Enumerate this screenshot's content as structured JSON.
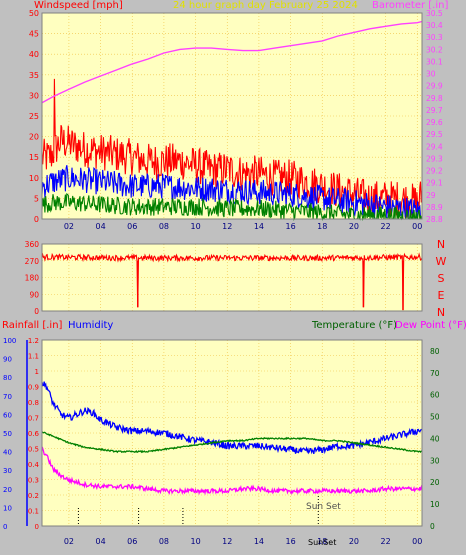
{
  "header": {
    "title": "24 hour graph day   February 25 2024",
    "left_label": "Windspeed [mph]",
    "right_label": "Barometer [.in]",
    "rain_label": "Rainfall [.in]",
    "humidity_label": "Humidity",
    "temp_label": "Temperature (°F)",
    "dew_label": "Dew Point (°F)",
    "sunset_label": "Sun Set",
    "sunset_axis_label": "SunSet"
  },
  "colors": {
    "background": "#c0c0c0",
    "plot": "#ffffc0",
    "grid": "#f0c040",
    "wind_gust": "#ff0000",
    "wind_avg": "#0000ff",
    "wind_low": "#008000",
    "barometer": "#ff40ff",
    "direction": "#ff0000",
    "humidity": "#0000ff",
    "temperature": "#008000",
    "dew_point": "#ff00ff",
    "rain": "#ff0000"
  },
  "chart_data": [
    {
      "type": "line",
      "name": "wind-barometer",
      "x_tick_labels": [
        "02",
        "04",
        "06",
        "08",
        "10",
        "12",
        "14",
        "16",
        "18",
        "20",
        "22",
        "00"
      ],
      "x_tick_hours": [
        2,
        4,
        6,
        8,
        10,
        12,
        14,
        16,
        18,
        20,
        22,
        24
      ],
      "xlim": [
        0.3,
        24.3
      ],
      "ylim_left": [
        0,
        50
      ],
      "yticks_left": [
        0,
        5,
        10,
        15,
        20,
        25,
        30,
        35,
        40,
        45,
        50
      ],
      "ylim_right": [
        28.8,
        30.5
      ],
      "yticks_right": [
        "28.8",
        "28.9",
        "29",
        "29.1",
        "29.2",
        "29.3",
        "29.4",
        "29.5",
        "29.6",
        "29.7",
        "29.8",
        "29.9",
        "30",
        "30.1",
        "30.2",
        "30.3",
        "30.4",
        "30.5"
      ],
      "series": [
        {
          "hours": [
            0.3,
            0.8,
            1.5,
            3,
            4.5,
            6,
            7,
            8,
            9,
            10,
            11,
            12,
            13,
            14,
            15,
            16,
            17,
            18,
            19,
            20,
            21,
            22,
            23,
            24,
            24.3
          ],
          "values": [
            15,
            15,
            19,
            17,
            16,
            15,
            14,
            14,
            14,
            13,
            12,
            12,
            11,
            11,
            10,
            10,
            9,
            8,
            7,
            6,
            5,
            5,
            5,
            4,
            6
          ]
        },
        {
          "hours": [
            0.3,
            1,
            2,
            4,
            6,
            8,
            10,
            12,
            14,
            16,
            18,
            20,
            22,
            24,
            24.3
          ],
          "values": [
            8,
            9,
            10,
            9,
            8,
            8,
            7.5,
            7,
            6.5,
            6,
            5,
            4,
            3,
            2,
            2
          ]
        },
        {
          "hours": [
            0.3,
            1,
            2,
            4,
            6,
            8,
            10,
            12,
            14,
            16,
            18,
            20,
            22,
            24,
            24.3
          ],
          "values": [
            3.5,
            4,
            4,
            3.5,
            3,
            3,
            3,
            2.5,
            2.5,
            2,
            1.5,
            1,
            1,
            0.5,
            0.5
          ]
        },
        {
          "hours": [
            0.3,
            1,
            2,
            3,
            4,
            5,
            6,
            7,
            8,
            9,
            10,
            11,
            12,
            13,
            14,
            15,
            16,
            17,
            18,
            19,
            20,
            21,
            22,
            23,
            24,
            24.3
          ],
          "values": [
            29.76,
            29.81,
            29.87,
            29.93,
            29.98,
            30.03,
            30.08,
            30.12,
            30.17,
            30.2,
            30.21,
            30.21,
            30.2,
            30.19,
            30.19,
            30.21,
            30.23,
            30.25,
            30.27,
            30.31,
            30.34,
            30.37,
            30.39,
            30.41,
            30.42,
            30.43
          ]
        }
      ],
      "extremes": {
        "gust_max": 34,
        "gust_peak_hour": 1.1
      }
    },
    {
      "type": "line",
      "name": "wind-direction",
      "yticks": [
        0,
        90,
        180,
        270,
        360
      ],
      "ylim": [
        0,
        360
      ],
      "compass_labels": [
        "N",
        "W",
        "S",
        "E",
        "N"
      ],
      "series": [
        {
          "hours": [
            0.3,
            6,
            12,
            18,
            24.3
          ],
          "values": [
            290,
            285,
            285,
            285,
            290
          ]
        }
      ],
      "dips": [
        {
          "hour": 6.35,
          "value": 20
        },
        {
          "hour": 20.6,
          "value": 20
        },
        {
          "hour": 23.1,
          "value": 5
        }
      ]
    },
    {
      "type": "line",
      "name": "humidity-temperature",
      "x_tick_labels": [
        "02",
        "04",
        "06",
        "08",
        "10",
        "12",
        "14",
        "16",
        "18",
        "20",
        "22",
        "00"
      ],
      "x_tick_hours": [
        2,
        4,
        6,
        8,
        10,
        12,
        14,
        16,
        18,
        20,
        22,
        24
      ],
      "xlim": [
        0.3,
        24.3
      ],
      "ylim_humidity": [
        0,
        100
      ],
      "yticks_humidity": [
        0,
        10,
        20,
        30,
        40,
        50,
        60,
        70,
        80,
        90,
        100
      ],
      "ylim_rain": [
        0,
        1.2
      ],
      "yticks_rain": [
        "0",
        "0.1",
        "0.2",
        "0.3",
        "0.4",
        "0.5",
        "0.6",
        "0.7",
        "0.8",
        "0.9",
        "1",
        "1.1",
        "1.2"
      ],
      "ylim_temp": [
        0,
        85
      ],
      "yticks_temp": [
        0,
        10,
        20,
        30,
        40,
        50,
        60,
        70,
        80
      ],
      "sunset_hour": 17.75,
      "dashed_marks_hours": [
        2.6,
        6.4,
        9.2
      ],
      "series": [
        {
          "name": "Humidity",
          "hours": [
            0.3,
            0.6,
            1,
            1.5,
            2,
            2.5,
            3,
            3.5,
            4,
            5,
            6,
            7,
            8,
            9,
            10,
            11,
            12,
            13,
            14,
            15,
            16,
            17,
            18,
            19,
            20,
            21,
            22,
            23,
            24,
            24.3
          ],
          "values": [
            77,
            75,
            66,
            60,
            58,
            60,
            62,
            61,
            57,
            53,
            51,
            51,
            50,
            48,
            46,
            45,
            43,
            43,
            43,
            42,
            41,
            40,
            41,
            43,
            43,
            45,
            47,
            49,
            51,
            52
          ]
        },
        {
          "name": "Temperature",
          "hours": [
            0.3,
            1,
            2,
            3,
            4,
            5,
            6,
            7,
            8,
            9,
            10,
            11,
            12,
            13,
            14,
            15,
            16,
            17,
            18,
            19,
            20,
            21,
            22,
            23,
            24,
            24.3
          ],
          "values": [
            43,
            41,
            38,
            36,
            35,
            34,
            34,
            34,
            35,
            36,
            37,
            38,
            39,
            39,
            40,
            40,
            40,
            40,
            39,
            39,
            38,
            37,
            36,
            35,
            34,
            34
          ]
        },
        {
          "name": "Dew Point",
          "hours": [
            0.3,
            0.6,
            1,
            1.5,
            2,
            3,
            4,
            5,
            6,
            7,
            8,
            9,
            10,
            11,
            12,
            13,
            14,
            15,
            16,
            17,
            18,
            19,
            20,
            21,
            22,
            23,
            24,
            24.3
          ],
          "values": [
            35,
            32,
            26,
            23,
            21,
            19,
            18,
            18,
            18,
            17,
            16,
            16,
            16,
            16,
            16,
            17,
            17,
            16,
            16,
            16,
            16,
            16,
            16,
            16,
            17,
            17,
            17,
            17
          ]
        }
      ]
    }
  ]
}
